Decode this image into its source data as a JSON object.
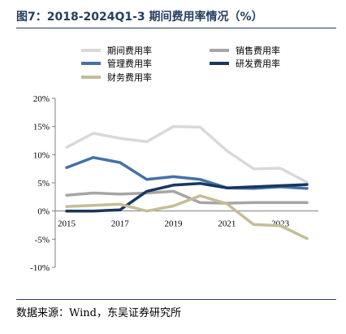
{
  "title": "图7：2018-2024Q1-3 期间费用率情况（%）",
  "source": "数据来源：Wind，东吴证券研究所",
  "chart_data": {
    "type": "line",
    "x": [
      2015,
      2016,
      2017,
      2018,
      2019,
      2020,
      2021,
      2022,
      2023,
      2024
    ],
    "xticks": [
      2015,
      2017,
      2019,
      2021,
      2023
    ],
    "ylim": [
      -10,
      20
    ],
    "yticks": [
      "20%",
      "15%",
      "10%",
      "5%",
      "0%",
      "-5%",
      "-10%"
    ],
    "ytick_values": [
      20,
      15,
      10,
      5,
      0,
      -5,
      -10
    ],
    "grid": false,
    "legend_position": "top",
    "series": [
      {
        "name": "期间费用率",
        "color": "#d9d9d9",
        "values": [
          11.3,
          13.8,
          12.9,
          12.3,
          15.0,
          14.9,
          10.7,
          7.5,
          7.6,
          5.1
        ]
      },
      {
        "name": "销售费用率",
        "color": "#a6a6a6",
        "values": [
          2.8,
          3.2,
          3.0,
          3.2,
          3.5,
          1.5,
          1.4,
          1.5,
          1.5,
          1.5
        ]
      },
      {
        "name": "管理费用率",
        "color": "#4472a8",
        "values": [
          7.7,
          9.5,
          8.6,
          5.6,
          6.1,
          5.6,
          4.1,
          4.0,
          4.3,
          4.0
        ]
      },
      {
        "name": "研发费用率",
        "color": "#17375e",
        "values": [
          0.0,
          0.0,
          0.2,
          3.5,
          4.6,
          4.9,
          4.1,
          4.3,
          4.5,
          4.7
        ]
      },
      {
        "name": "财务费用率",
        "color": "#c4bd97",
        "values": [
          0.8,
          1.0,
          1.2,
          0.0,
          0.9,
          2.7,
          1.3,
          -2.4,
          -2.6,
          -4.9
        ]
      }
    ]
  }
}
